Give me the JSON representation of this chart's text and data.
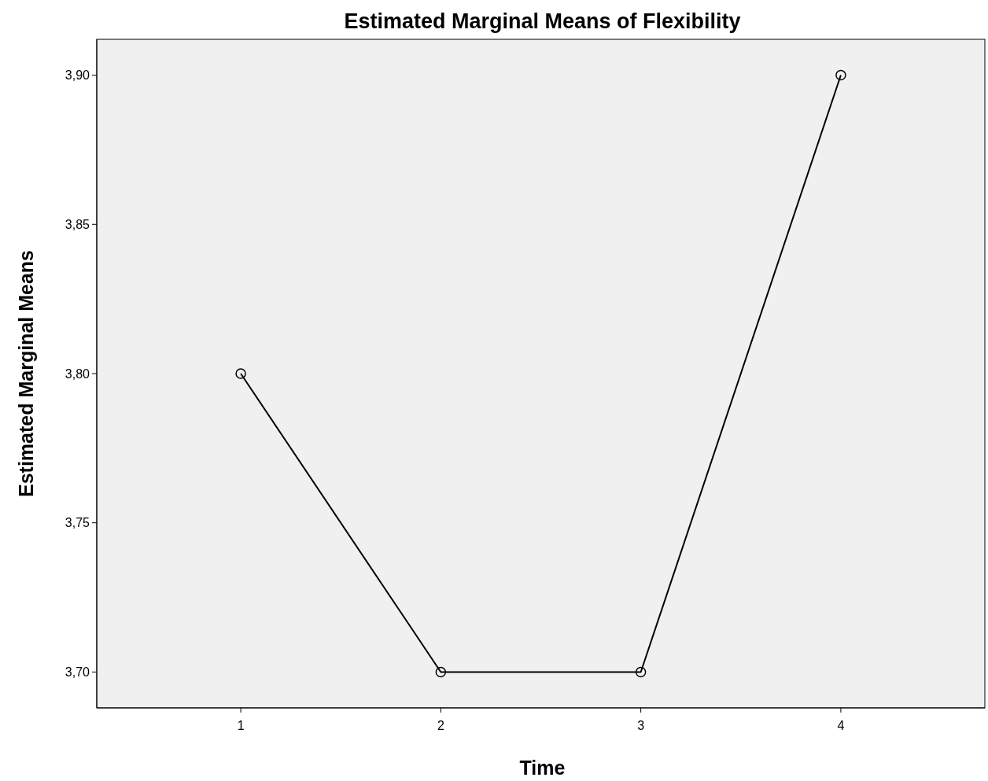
{
  "chart_data": {
    "type": "line",
    "title": "Estimated Marginal Means of Flexibility",
    "xlabel": "Time",
    "ylabel": "Estimated Marginal Means",
    "categories": [
      "1",
      "2",
      "3",
      "4"
    ],
    "series": [
      {
        "color": "#000000",
        "values": [
          3.8,
          3.7,
          3.7,
          3.9
        ]
      }
    ],
    "ylim": [
      3.688,
      3.912
    ],
    "yticks": [
      {
        "value": 3.7,
        "label": "3,70"
      },
      {
        "value": 3.75,
        "label": "3,75"
      },
      {
        "value": 3.8,
        "label": "3,80"
      },
      {
        "value": 3.85,
        "label": "3,85"
      },
      {
        "value": 3.9,
        "label": "3,90"
      }
    ],
    "marker": "circle",
    "line_style": "solid",
    "grid": false
  }
}
